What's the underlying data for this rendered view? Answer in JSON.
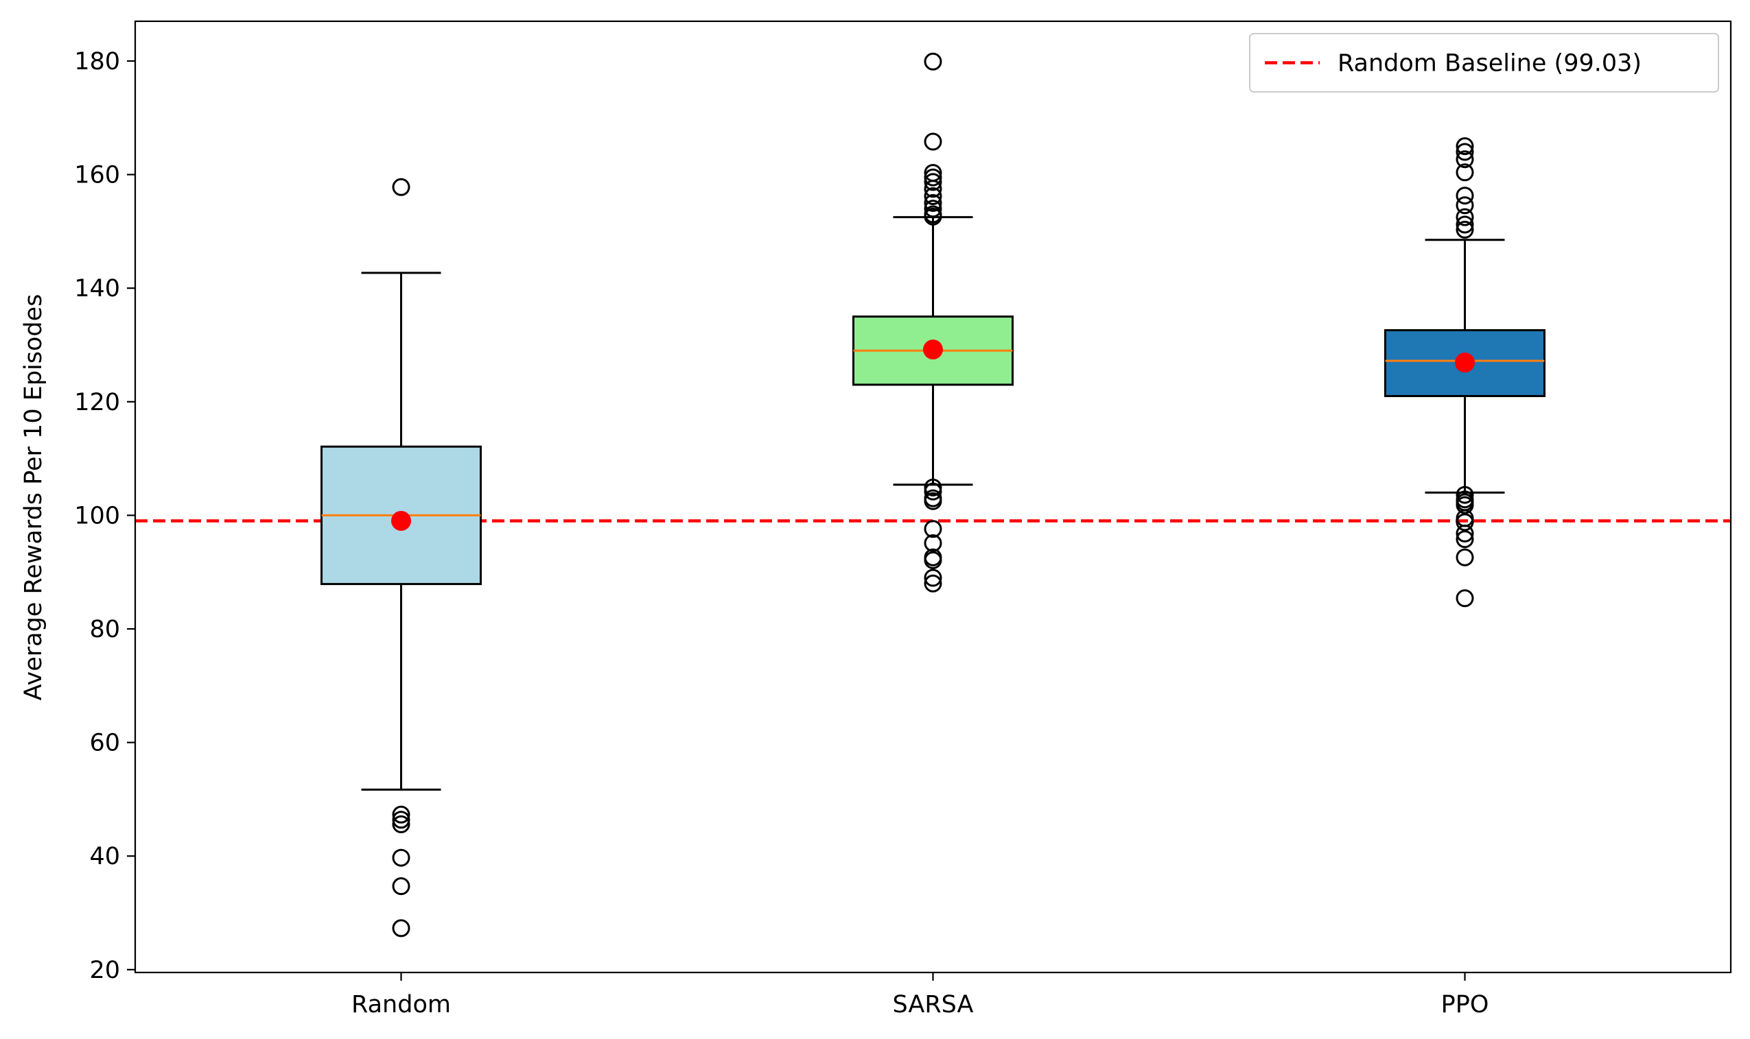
{
  "chart_data": {
    "type": "box",
    "categories": [
      "Random",
      "SARSA",
      "PPO"
    ],
    "xlabel": "",
    "ylabel": "Average Rewards Per 10 Episodes",
    "ylim": [
      19.5,
      187
    ],
    "yticks": [
      20,
      40,
      60,
      80,
      100,
      120,
      140,
      160,
      180
    ],
    "grid": false,
    "legend": {
      "position": "top-right",
      "entries": [
        {
          "label": "Random Baseline (99.03)",
          "style": "dashed",
          "color": "#ff0000"
        }
      ]
    },
    "baseline": {
      "value": 99.03,
      "color": "#ff0000",
      "style": "dashed"
    },
    "boxes": [
      {
        "name": "Random",
        "fill": "#add8e6",
        "whisker_low": 51.7,
        "q1": 87.9,
        "median": 100.0,
        "q3": 112.1,
        "whisker_high": 142.7,
        "mean": 99.03,
        "outliers": [
          157.8,
          47.3,
          46.4,
          45.6,
          39.7,
          34.7,
          27.3
        ]
      },
      {
        "name": "SARSA",
        "fill": "#90ee90",
        "whisker_low": 105.4,
        "q1": 123.0,
        "median": 129.0,
        "q3": 135.0,
        "whisker_high": 152.5,
        "mean": 129.2,
        "outliers": [
          179.9,
          165.8,
          160.3,
          159.5,
          158.7,
          157.5,
          156.2,
          155.0,
          154.0,
          153.0,
          152.6,
          104.9,
          104.2,
          103.0,
          102.5,
          97.6,
          95.1,
          92.6,
          92.1,
          89.0,
          88.0
        ]
      },
      {
        "name": "PPO",
        "fill": "#1f77b4",
        "whisker_low": 104.0,
        "q1": 121.0,
        "median": 127.2,
        "q3": 132.6,
        "whisker_high": 148.5,
        "mean": 126.9,
        "outliers": [
          165.0,
          164.0,
          162.7,
          160.4,
          156.3,
          154.6,
          152.5,
          151.2,
          150.3,
          103.6,
          102.8,
          102.3,
          101.8,
          99.5,
          98.8,
          96.8,
          95.8,
          92.6,
          85.4
        ]
      }
    ]
  }
}
